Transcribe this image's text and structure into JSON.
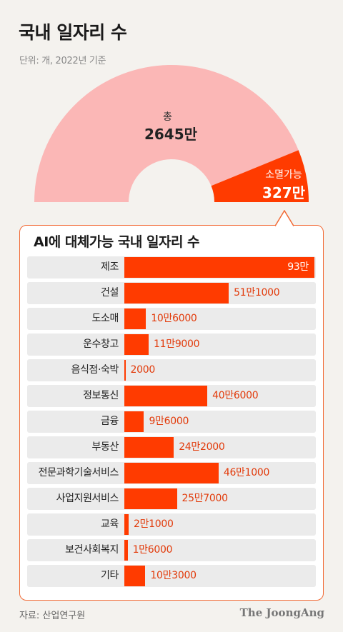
{
  "title": "국내 일자리 수",
  "unit": "단위: 개, 2022년 기준",
  "donut": {
    "total_label": "총",
    "total_value": "2645만",
    "part_label": "소멸가능",
    "part_value": "327만",
    "total": 26450000,
    "part": 3270000,
    "colors": {
      "total": "#fbb7b6",
      "part": "#ff3b00"
    }
  },
  "panel_title": "AI에 대체가능 국내 일자리 수",
  "chart_data": {
    "type": "bar",
    "orientation": "horizontal",
    "categories": [
      "제조",
      "건설",
      "도소매",
      "운수창고",
      "음식점·숙박",
      "정보통신",
      "금융",
      "부동산",
      "전문과학기술서비스",
      "사업지원서비스",
      "교육",
      "보건사회복지",
      "기타"
    ],
    "values": [
      930000,
      511000,
      106000,
      119000,
      2000,
      406000,
      96000,
      242000,
      461000,
      257000,
      21000,
      16000,
      103000
    ],
    "value_labels": [
      "93만",
      "51만1000",
      "10만6000",
      "11만9000",
      "2000",
      "40만6000",
      "9만6000",
      "24만2000",
      "46만1000",
      "25만7000",
      "2만1000",
      "1만6000",
      "10만3000"
    ],
    "title": "AI에 대체가능 국내 일자리 수",
    "xlim": [
      0,
      930000
    ],
    "bar_color": "#ff3b00"
  },
  "footer": {
    "source": "자료: 산업연구원",
    "brand": "The JoongAng"
  }
}
